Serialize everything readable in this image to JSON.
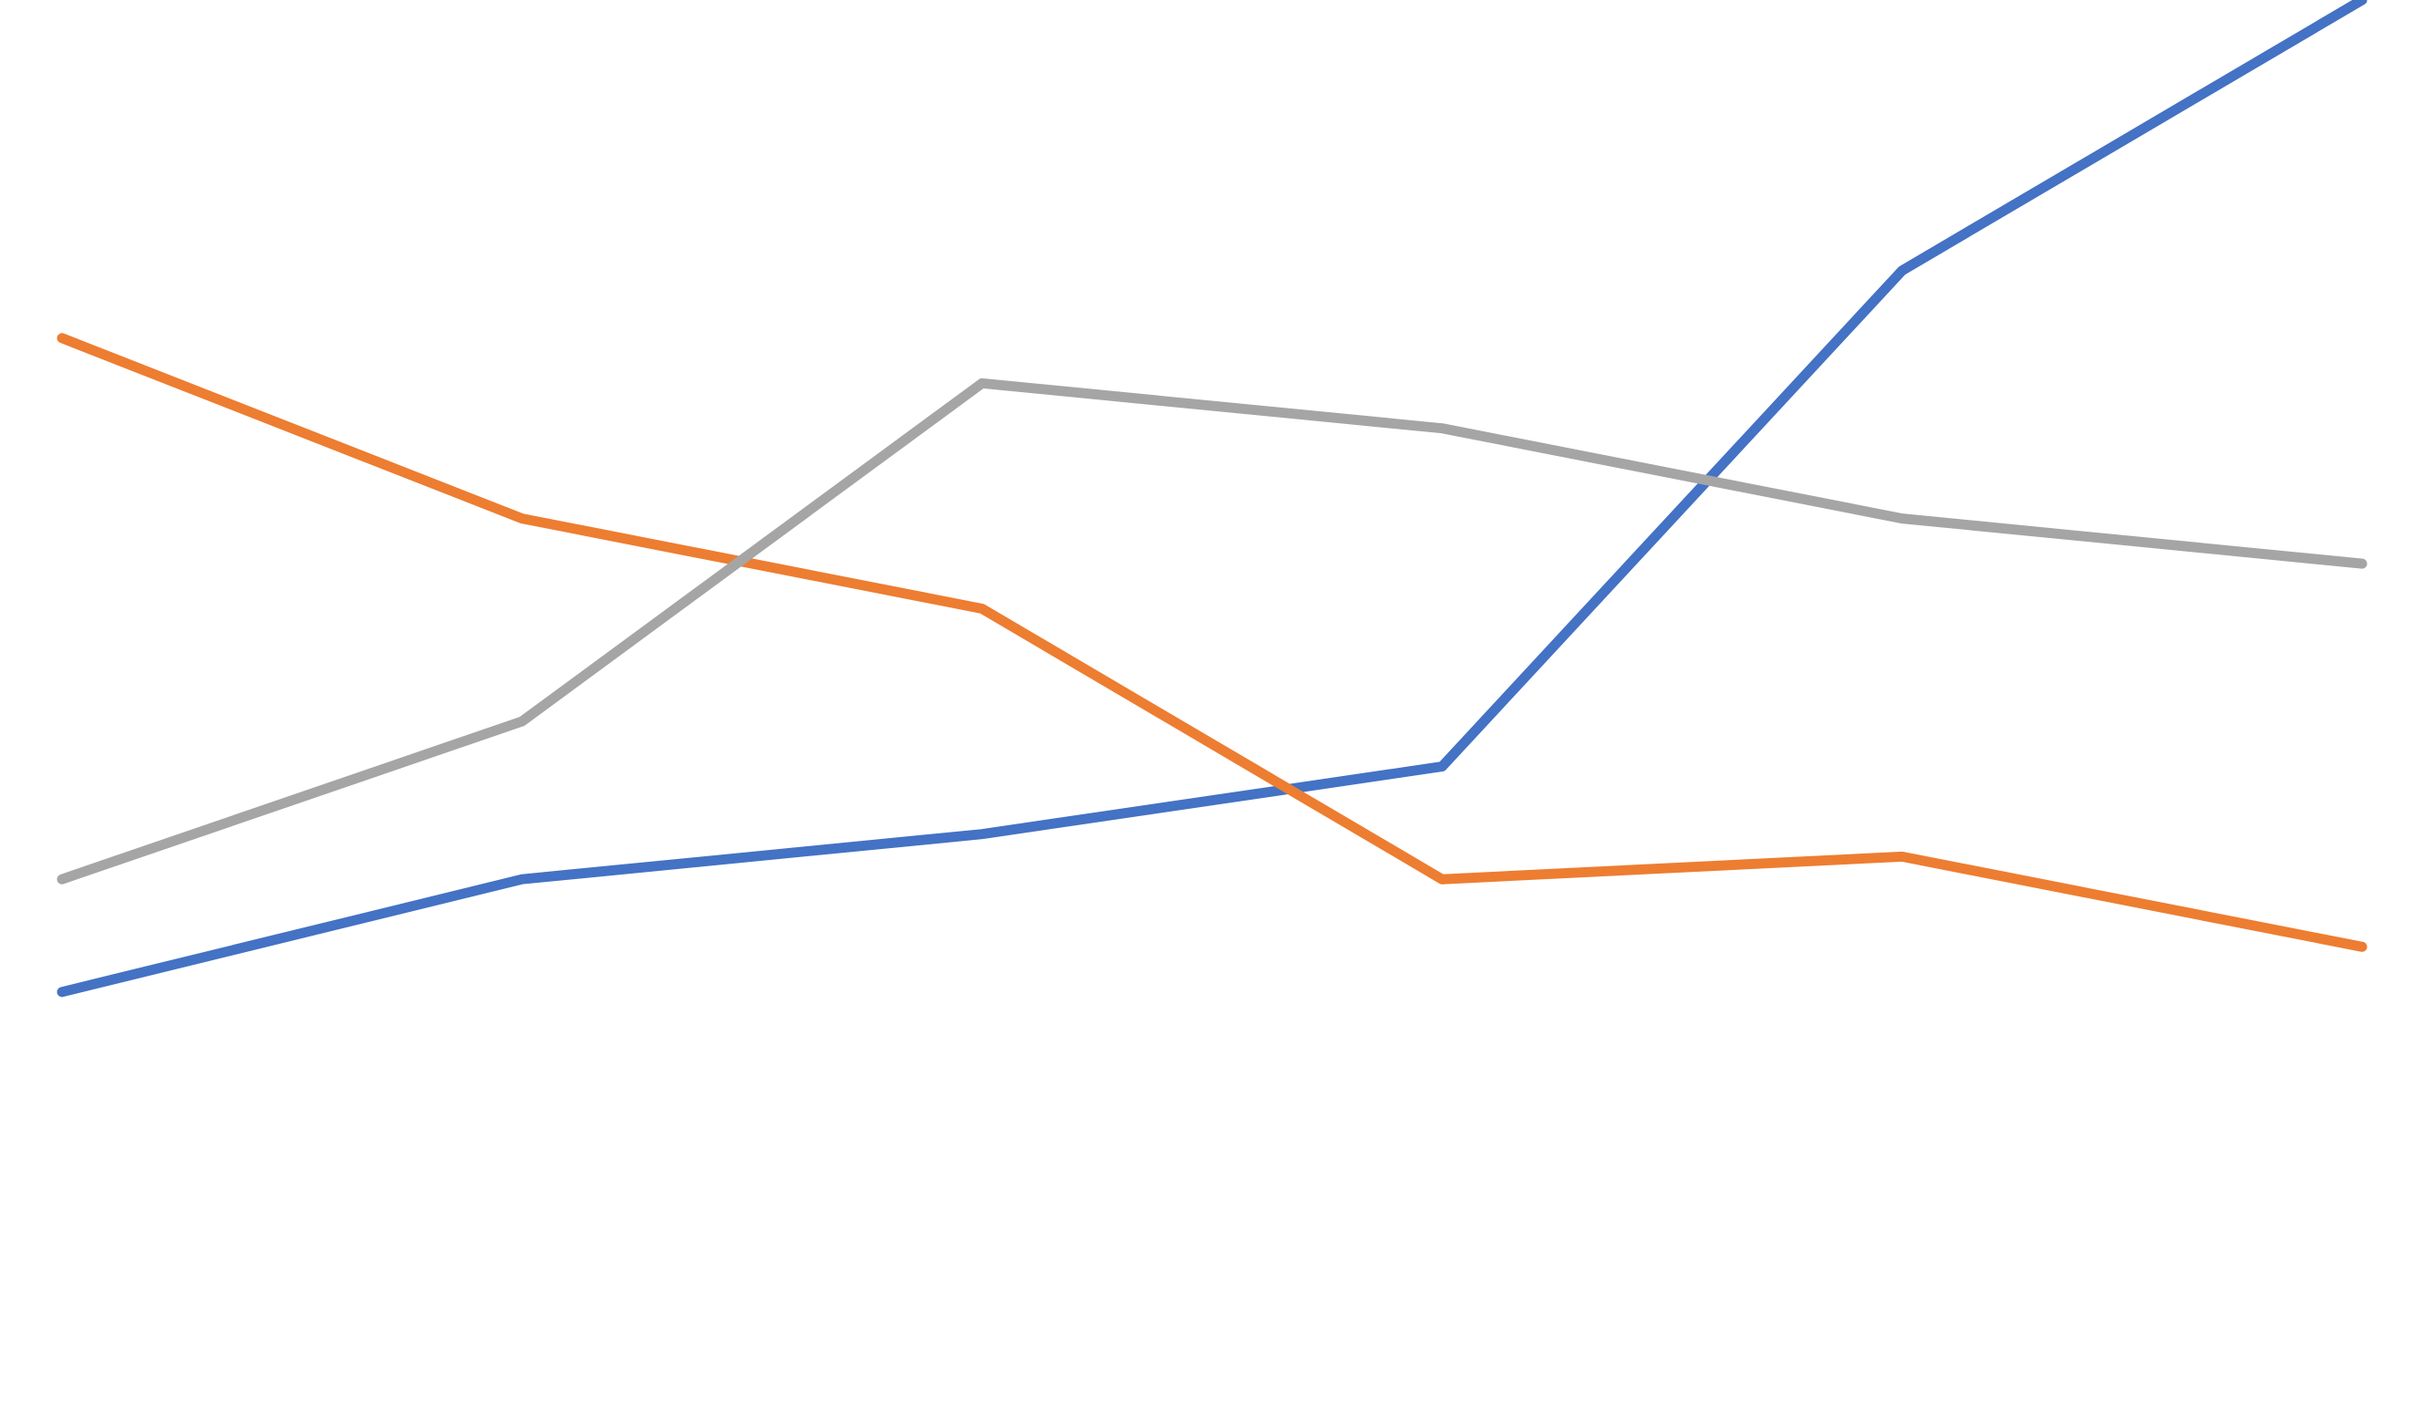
{
  "chart_data": {
    "type": "line",
    "title": "",
    "xlabel": "",
    "ylabel": "",
    "x": [
      1,
      2,
      3,
      4,
      5,
      6
    ],
    "xlim": [
      1,
      6
    ],
    "ylim": [
      0,
      5.4
    ],
    "grid": false,
    "legend": "none",
    "series": [
      {
        "color": "#4472C4",
        "values": [
          1.0,
          1.5,
          1.7,
          2.0,
          4.2,
          5.4
        ]
      },
      {
        "color": "#ED7D31",
        "values": [
          3.9,
          3.1,
          2.7,
          1.5,
          1.6,
          1.2
        ]
      },
      {
        "color": "#A5A5A5",
        "values": [
          1.5,
          2.2,
          3.7,
          3.5,
          3.1,
          2.9
        ]
      }
    ]
  }
}
